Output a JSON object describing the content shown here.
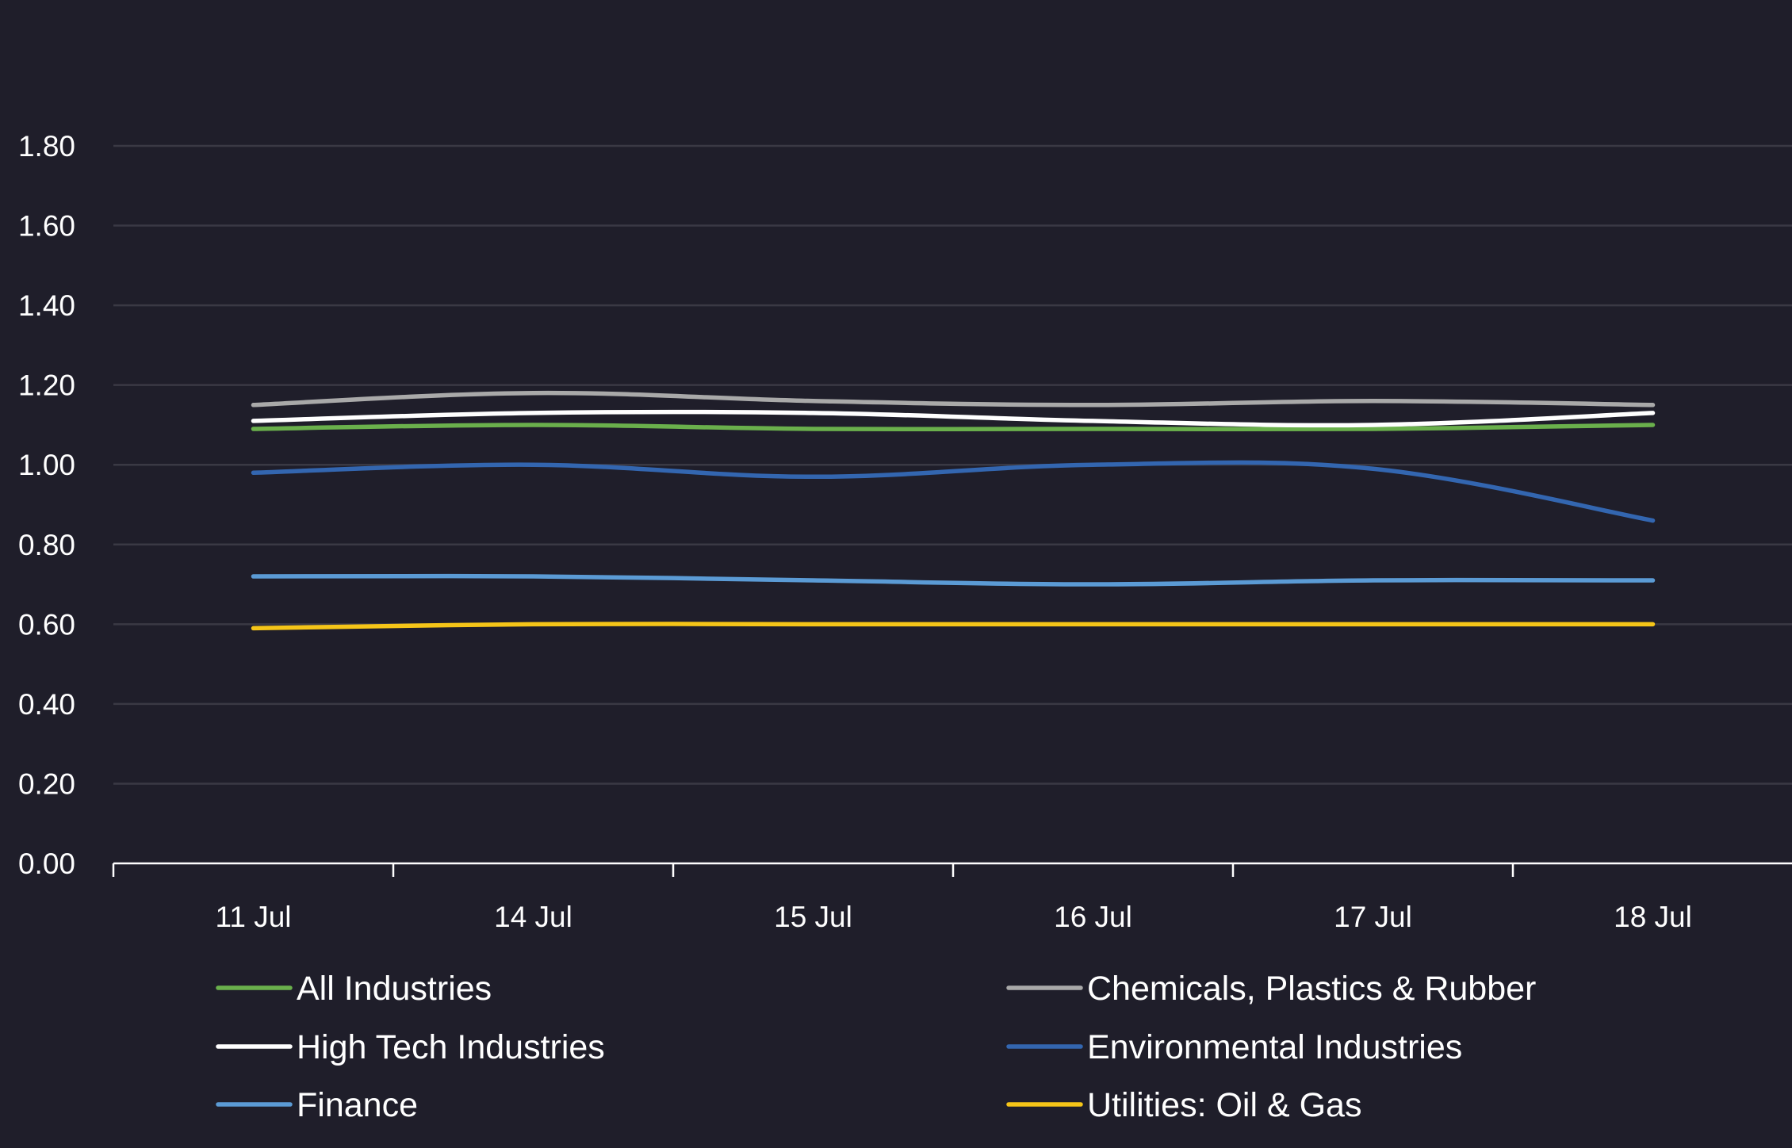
{
  "chart_data": {
    "type": "line",
    "title": "",
    "xlabel": "",
    "ylabel": "",
    "categories": [
      "11 Jul",
      "14 Jul",
      "15 Jul",
      "16 Jul",
      "17 Jul",
      "18 Jul"
    ],
    "ylim": [
      0,
      1.8
    ],
    "yticks": [
      "0.00",
      "0.20",
      "0.40",
      "0.60",
      "0.80",
      "1.00",
      "1.20",
      "1.40",
      "1.60",
      "1.80"
    ],
    "grid": true,
    "legend_position": "bottom",
    "series": [
      {
        "name": "All Industries",
        "color": "#6ab04c",
        "values": [
          1.09,
          1.1,
          1.09,
          1.09,
          1.09,
          1.1
        ]
      },
      {
        "name": "Chemicals, Plastics & Rubber",
        "color": "#a9a9a9",
        "values": [
          1.15,
          1.18,
          1.16,
          1.15,
          1.16,
          1.15
        ]
      },
      {
        "name": "High Tech Industries",
        "color": "#ffffff",
        "values": [
          1.11,
          1.13,
          1.13,
          1.11,
          1.1,
          1.13
        ]
      },
      {
        "name": "Environmental Industries",
        "color": "#3366b0",
        "values": [
          0.98,
          1.0,
          0.97,
          1.0,
          0.99,
          0.86
        ]
      },
      {
        "name": "Finance",
        "color": "#5b9bd5",
        "values": [
          0.72,
          0.72,
          0.71,
          0.7,
          0.71,
          0.71
        ]
      },
      {
        "name": "Utilities: Oil & Gas",
        "color": "#f5c518",
        "values": [
          0.59,
          0.6,
          0.6,
          0.6,
          0.6,
          0.6
        ]
      }
    ]
  }
}
